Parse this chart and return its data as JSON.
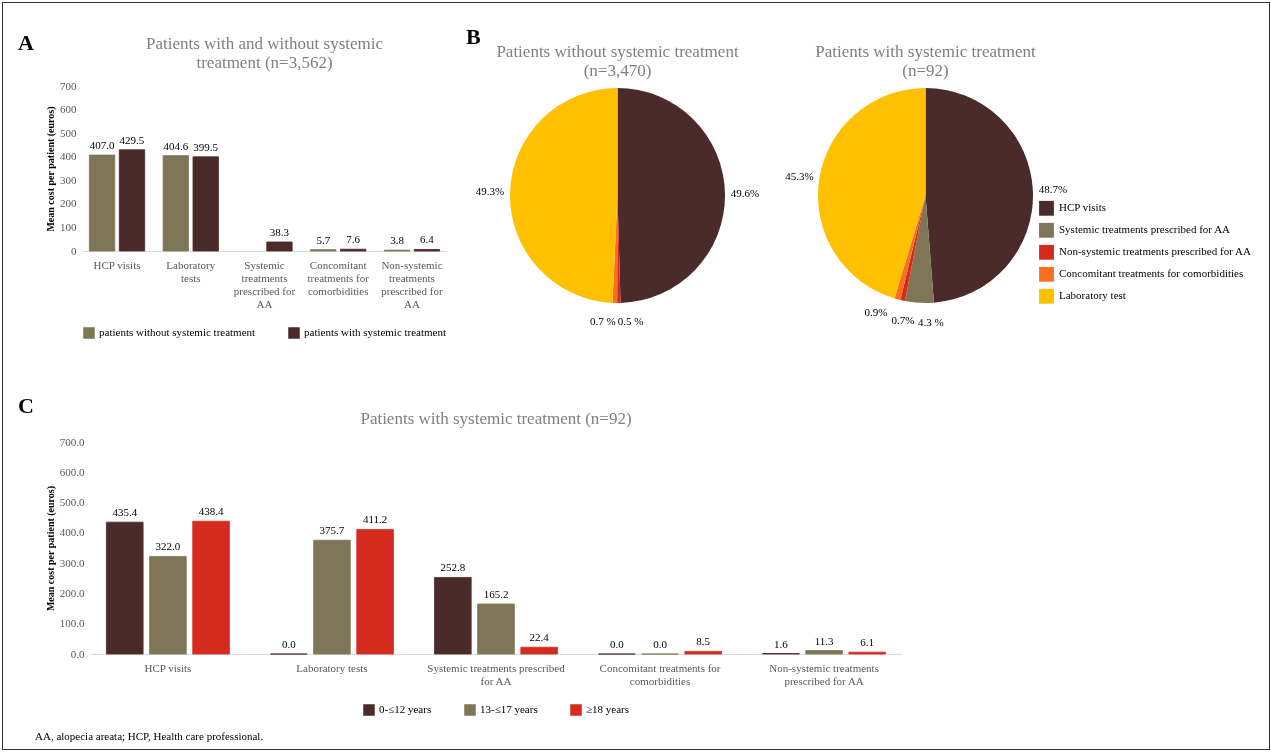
{
  "chart_data": [
    {
      "type": "bar",
      "title": "Patients with and without systemic treatment (n=3,562)",
      "ylabel": "Mean cost per patient (euros)",
      "categories": [
        "HCP visits",
        "Laboratory tests",
        "Systemic treatments prescribed for AA",
        "Concomitant treatments for comorbidities",
        "Non-systemic treatments prescribed for AA"
      ],
      "series": [
        {
          "name": "patients without systemic treatment",
          "color": "#7f7657",
          "values": [
            407.0,
            404.6,
            null,
            5.7,
            3.8
          ],
          "value_labels": [
            "407.0",
            "404.6",
            null,
            "5.7",
            "3.8"
          ]
        },
        {
          "name": "patients with systemic treatment",
          "color": "#4b2a2a",
          "values": [
            429.5,
            399.5,
            38.3,
            7.6,
            6.4
          ],
          "value_labels": [
            "429.5",
            "399.5",
            "38.3",
            "7.6",
            "6.4"
          ]
        }
      ],
      "ylim": [
        0,
        700
      ],
      "yticks": [
        0,
        100,
        200,
        300,
        400,
        500,
        600,
        700
      ],
      "grid": false,
      "legend": "bottom",
      "annotations": [
        "A"
      ]
    },
    {
      "type": "pie",
      "title": "Patients without systemic treatment (n=3,470)",
      "values": [
        49.6,
        null,
        0.5,
        0.7,
        49.3
      ],
      "colors": [
        "#4b2a2a",
        "#7f7657",
        "#d52b1e",
        "#f7701f",
        "#ffc000"
      ],
      "value_labels": [
        "49.6%",
        null,
        "0.5 %",
        "0.7 %",
        "49.3%"
      ],
      "annotations": [
        "B"
      ]
    },
    {
      "type": "pie",
      "title": "Patients with systemic treatment (n=92)",
      "categories": [
        "HCP visits",
        "Systemic treatments prescribed for AA",
        "Non-systemic treatments prescribed for AA",
        "Concomitant treatments for comorbidities",
        "Laboratory test"
      ],
      "values": [
        48.7,
        4.3,
        0.7,
        0.9,
        45.3
      ],
      "colors": [
        "#4b2a2a",
        "#7f7657",
        "#d52b1e",
        "#f7701f",
        "#ffc000"
      ],
      "value_labels": [
        "48.7%",
        "4.3 %",
        "0.7%",
        "0.9%",
        "45.3%"
      ],
      "legend": "right"
    },
    {
      "type": "bar",
      "title": "Patients with systemic treatment (n=92)",
      "ylabel": "Mean cost per patient (euros)",
      "categories": [
        "HCP visits",
        "Laboratory tests",
        "Systemic treatments prescribed for AA",
        "Concomitant treatments for comorbidities",
        "Non-systemic treatments prescribed for AA"
      ],
      "series": [
        {
          "name": "0-≤12 years",
          "color": "#4b2a2a",
          "values": [
            435.4,
            0.0,
            252.8,
            0.0,
            1.6
          ],
          "value_labels": [
            "435.4",
            "0.0",
            "252.8",
            "0.0",
            "1.6"
          ]
        },
        {
          "name": "13-≤17 years",
          "color": "#7f7657",
          "values": [
            322.0,
            375.7,
            165.2,
            0.0,
            11.3
          ],
          "value_labels": [
            "322.0",
            "375.7",
            "165.2",
            "0.0",
            "11.3"
          ]
        },
        {
          "name": "≥18 years",
          "color": "#d52b1e",
          "values": [
            438.4,
            411.2,
            22.4,
            8.5,
            6.1
          ],
          "value_labels": [
            "438.4",
            "411.2",
            "22.4",
            "8.5",
            "6.1"
          ]
        }
      ],
      "ylim": [
        0,
        700
      ],
      "yticks": [
        {
          "value": 0,
          "label": "0.0"
        },
        {
          "value": 100,
          "label": "100.0"
        },
        {
          "value": 200,
          "label": "200.0"
        },
        {
          "value": 300,
          "label": "300.0"
        },
        {
          "value": 400,
          "label": "400.0"
        },
        {
          "value": 500,
          "label": "500.0"
        },
        {
          "value": 600,
          "label": "600.0"
        },
        {
          "value": 700,
          "label": "700.0"
        }
      ],
      "grid": false,
      "legend": "bottom",
      "annotations": [
        "C",
        "AA, alopecia areata; HCP, Health care professional."
      ]
    }
  ]
}
